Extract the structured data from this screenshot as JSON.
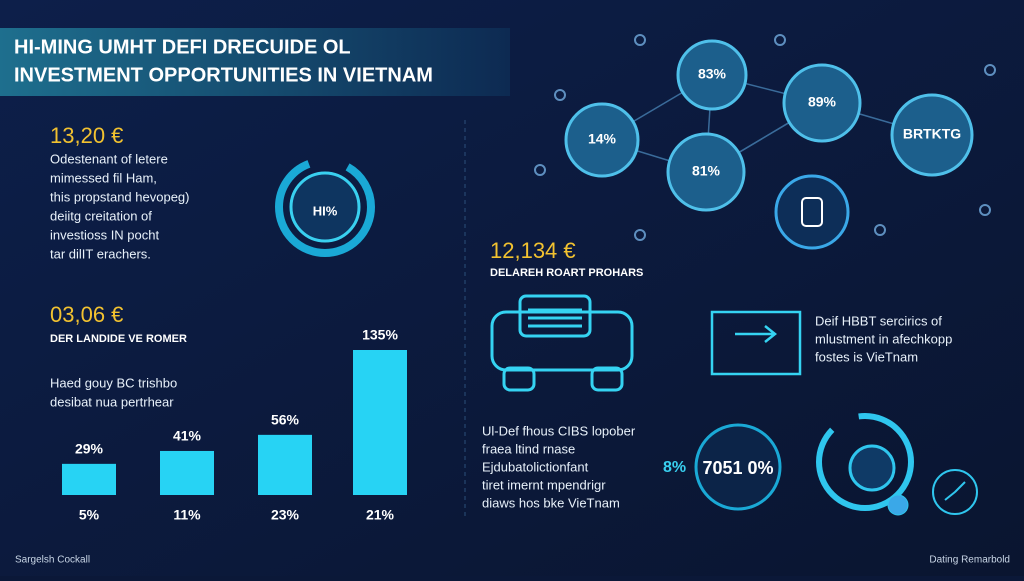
{
  "header": {
    "title_line1": "HI-MING UMHT DEFI DRECUIDE OL",
    "title_line2": "INVESTMENT OPPORTUNITIES IN VIETNAM"
  },
  "left": {
    "stat1": "13,20 €",
    "paragraph": [
      "Odestenant of letere",
      "mimessed fil Ham,",
      "this propstand hevopeg)",
      "deiitg creitation of",
      "investioss IN pocht",
      "tar dilIT erachers."
    ],
    "ring_label": "HI%",
    "stat2": "03,06 €",
    "stat2_caption": "DER LANDIDE VE ROMER",
    "chart_caption": [
      "Haed gouy BC trishbo",
      "desibat nua pertrhear"
    ]
  },
  "bars": {
    "values": [
      29,
      41,
      56,
      135
    ],
    "value_labels": [
      "29%",
      "41%",
      "56%",
      "135%"
    ],
    "categories": [
      "5%",
      "11%",
      "23%",
      "21%"
    ]
  },
  "network": {
    "nodes": [
      "83%",
      "89%",
      "14%",
      "BRTKTG",
      "81%"
    ]
  },
  "right": {
    "stat": "12,134 €",
    "stat_caption": "DELAREH ROART PROHARS",
    "side_text": [
      "Deif HBBT sercirics of",
      "mlustment in afechkopp",
      "fostes is VieTnam"
    ],
    "bottom_text": [
      "Ul-Def fhous CIBS lopober",
      "fraea ltind rnase",
      "Ejdubatolictionfant",
      "tiret imernt mpendrigr",
      "diaws hos bke VieTnam"
    ],
    "small_pct": "8%",
    "circle_label": "7051 0%"
  },
  "footer": {
    "left": "Sargelsh Cockall",
    "right": "Dating Remarbold"
  }
}
